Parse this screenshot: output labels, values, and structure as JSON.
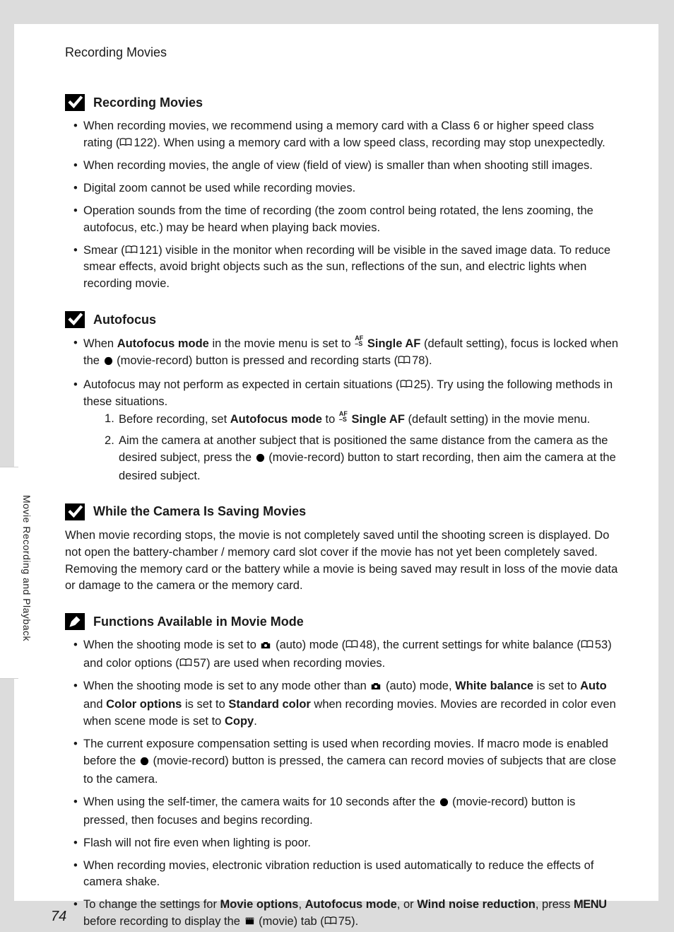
{
  "page": {
    "breadcrumb": "Recording Movies",
    "side_label": "Movie Recording and Playback",
    "page_number": "74",
    "bg_color": "#dcdcdc",
    "paper_color": "#ffffff",
    "text_color": "#1a1a1a"
  },
  "icons": {
    "check": "check-icon",
    "pen": "pen-icon",
    "book": "book-icon",
    "record": "record-dot-icon",
    "af_s": "af-s-icon",
    "camera": "camera-icon",
    "movie_tab": "movie-tab-icon",
    "menu": "MENU"
  },
  "sections": [
    {
      "icon": "check",
      "title": "Recording Movies",
      "bullets": [
        {
          "parts": [
            {
              "t": "When recording movies, we recommend using a memory card with a Class 6 or higher speed class rating ("
            },
            {
              "ref": "122"
            },
            {
              "t": "). When using a memory card with a low speed class, recording may stop unexpectedly."
            }
          ]
        },
        {
          "parts": [
            {
              "t": "When recording movies, the angle of view (field of view) is smaller than when shooting still images."
            }
          ]
        },
        {
          "parts": [
            {
              "t": "Digital zoom cannot be used while recording movies."
            }
          ]
        },
        {
          "parts": [
            {
              "t": "Operation sounds from the time of recording (the zoom control being rotated, the lens zooming, the autofocus, etc.) may be heard when playing back movies."
            }
          ]
        },
        {
          "parts": [
            {
              "t": "Smear ("
            },
            {
              "ref": "121"
            },
            {
              "t": ") visible in the monitor when recording will be visible in the saved image data. To reduce smear effects, avoid bright objects such as the sun, reflections of the sun, and electric lights when recording movie."
            }
          ]
        }
      ]
    },
    {
      "icon": "check",
      "title": "Autofocus",
      "bullets": [
        {
          "parts": [
            {
              "t": "When "
            },
            {
              "b": "Autofocus mode"
            },
            {
              "t": " in the movie menu is set to "
            },
            {
              "icon": "af_s"
            },
            {
              "t": " "
            },
            {
              "b": "Single AF"
            },
            {
              "t": " (default setting), focus is locked when the "
            },
            {
              "icon": "record"
            },
            {
              "t": " (movie-record) button is pressed and recording starts ("
            },
            {
              "ref": "78"
            },
            {
              "t": ")."
            }
          ]
        },
        {
          "parts": [
            {
              "t": "Autofocus may not perform as expected in certain situations ("
            },
            {
              "ref": "25"
            },
            {
              "t": "). Try using the following methods in these situations."
            }
          ],
          "numbers": [
            {
              "parts": [
                {
                  "t": "Before recording, set "
                },
                {
                  "b": "Autofocus mode"
                },
                {
                  "t": " to "
                },
                {
                  "icon": "af_s"
                },
                {
                  "t": " "
                },
                {
                  "b": "Single AF"
                },
                {
                  "t": " (default setting) in the movie menu."
                }
              ]
            },
            {
              "parts": [
                {
                  "t": "Aim the camera at another subject that is positioned the same distance from the camera as the desired subject, press the "
                },
                {
                  "icon": "record"
                },
                {
                  "t": " (movie-record) button to start recording, then aim the camera at the desired subject."
                }
              ]
            }
          ]
        }
      ]
    },
    {
      "icon": "check",
      "title": "While the Camera Is Saving Movies",
      "paragraph": {
        "parts": [
          {
            "t": "When movie recording stops, the movie is not completely saved until the shooting screen is displayed. Do not open the battery-chamber / memory card slot cover if the movie has not yet been completely saved. Removing the memory card or the battery while a movie is being saved may result in loss of the movie data or damage to the camera or the memory card."
          }
        ]
      }
    },
    {
      "icon": "pen",
      "title": "Functions Available in Movie Mode",
      "bullets": [
        {
          "parts": [
            {
              "t": "When the shooting mode is set to "
            },
            {
              "icon": "camera"
            },
            {
              "t": " (auto) mode ("
            },
            {
              "ref": "48"
            },
            {
              "t": "), the current settings for white balance ("
            },
            {
              "ref": "53"
            },
            {
              "t": ") and color options ("
            },
            {
              "ref": "57"
            },
            {
              "t": ") are used when recording movies."
            }
          ]
        },
        {
          "parts": [
            {
              "t": "When the shooting mode is set to any mode other than "
            },
            {
              "icon": "camera"
            },
            {
              "t": " (auto) mode, "
            },
            {
              "b": "White balance"
            },
            {
              "t": " is set to "
            },
            {
              "b": "Auto"
            },
            {
              "t": " and "
            },
            {
              "b": "Color options"
            },
            {
              "t": " is set to "
            },
            {
              "b": "Standard color"
            },
            {
              "t": " when recording movies. Movies are recorded in color even when scene mode is set to "
            },
            {
              "b": "Copy"
            },
            {
              "t": "."
            }
          ]
        },
        {
          "parts": [
            {
              "t": "The current exposure compensation setting is used when recording movies. If macro mode is enabled before the "
            },
            {
              "icon": "record"
            },
            {
              "t": " (movie-record) button is pressed, the camera can record movies of subjects that are close to the camera."
            }
          ]
        },
        {
          "parts": [
            {
              "t": "When using the self-timer, the camera waits for 10 seconds after the "
            },
            {
              "icon": "record"
            },
            {
              "t": " (movie-record) button is pressed, then focuses and begins recording."
            }
          ]
        },
        {
          "parts": [
            {
              "t": "Flash will not fire even when lighting is poor."
            }
          ]
        },
        {
          "parts": [
            {
              "t": "When recording movies, electronic vibration reduction is used automatically to reduce the effects of camera shake."
            }
          ]
        },
        {
          "parts": [
            {
              "t": "To change the settings for "
            },
            {
              "b": "Movie options"
            },
            {
              "t": ", "
            },
            {
              "b": "Autofocus mode"
            },
            {
              "t": ", or "
            },
            {
              "b": "Wind noise reduction"
            },
            {
              "t": ", press "
            },
            {
              "menu": true
            },
            {
              "t": " before recording to display the "
            },
            {
              "icon": "movie_tab"
            },
            {
              "t": " (movie) tab ("
            },
            {
              "ref": "75"
            },
            {
              "t": ")."
            }
          ]
        }
      ]
    }
  ]
}
